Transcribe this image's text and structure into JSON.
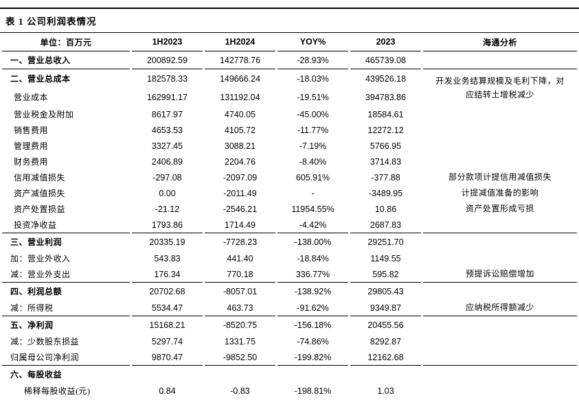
{
  "page": {
    "title": "表 1 公司利润表情况"
  },
  "table": {
    "columns": [
      "单位：百万元",
      "1H2023",
      "1H2024",
      "YOY%",
      "2023",
      "海通分析"
    ],
    "rows": [
      {
        "label": "一、营业总收入",
        "kind": "section",
        "indent": 0,
        "h1_2023": "200892.59",
        "h1_2024": "142778.76",
        "yoy": "-28.93%",
        "y2023": "465739.08",
        "analysis": "",
        "rule_below": true
      },
      {
        "label": "二、营业总成本",
        "kind": "section",
        "indent": 0,
        "h1_2023": "182578.33",
        "h1_2024": "149666.24",
        "yoy": "-18.03%",
        "y2023": "439526.18",
        "analysis": "开发业务结算规模及毛利下降，对应结转土增税减少",
        "analysis_rows": 2
      },
      {
        "label": "营业成本",
        "kind": "item",
        "indent": 1,
        "h1_2023": "162991.17",
        "h1_2024": "131192.04",
        "yoy": "-19.51%",
        "y2023": "394783.86",
        "analysis_merged": true
      },
      {
        "label": "营业税金及附加",
        "kind": "item",
        "indent": 1,
        "h1_2023": "8617.97",
        "h1_2024": "4740.05",
        "yoy": "-45.00%",
        "y2023": "18584.61",
        "analysis": ""
      },
      {
        "label": "销售费用",
        "kind": "item",
        "indent": 1,
        "h1_2023": "4653.53",
        "h1_2024": "4105.72",
        "yoy": "-11.77%",
        "y2023": "12272.12",
        "analysis": ""
      },
      {
        "label": "管理费用",
        "kind": "item",
        "indent": 1,
        "h1_2023": "3327.45",
        "h1_2024": "3088.21",
        "yoy": "-7.19%",
        "y2023": "5766.95",
        "analysis": ""
      },
      {
        "label": "财务费用",
        "kind": "item",
        "indent": 1,
        "h1_2023": "2406.89",
        "h1_2024": "2204.76",
        "yoy": "-8.40%",
        "y2023": "3714.83",
        "analysis": ""
      },
      {
        "label": "信用减值损失",
        "kind": "item",
        "indent": 1,
        "h1_2023": "-297.08",
        "h1_2024": "-2097.09",
        "yoy": "605.91%",
        "y2023": "-377.88",
        "analysis": "部分款项计提信用减值损失"
      },
      {
        "label": "资产减值损失",
        "kind": "item",
        "indent": 1,
        "h1_2023": "0.00",
        "h1_2024": "-2011.49",
        "yoy": "-",
        "y2023": "-3489.95",
        "analysis": "计提减值准备的影响"
      },
      {
        "label": "资产处置损益",
        "kind": "item",
        "indent": 1,
        "h1_2023": "-21.12",
        "h1_2024": "-2546.21",
        "yoy": "11954.55%",
        "y2023": "10.86",
        "analysis": "资产处置形成亏损"
      },
      {
        "label": "投资净收益",
        "kind": "item",
        "indent": 1,
        "h1_2023": "1793.86",
        "h1_2024": "1714.49",
        "yoy": "-4.42%",
        "y2023": "2687.83",
        "analysis": "",
        "rule_below": true
      },
      {
        "label": "三、营业利润",
        "kind": "section",
        "indent": 0,
        "h1_2023": "20335.19",
        "h1_2024": "-7728.23",
        "yoy": "-138.00%",
        "y2023": "29251.70",
        "analysis": ""
      },
      {
        "label": "加：营业外收入",
        "kind": "item",
        "indent": 0,
        "h1_2023": "543.83",
        "h1_2024": "441.40",
        "yoy": "-18.84%",
        "y2023": "1149.55",
        "analysis": ""
      },
      {
        "label": "减：营业外支出",
        "kind": "item",
        "indent": 0,
        "h1_2023": "176.34",
        "h1_2024": "770.18",
        "yoy": "336.77%",
        "y2023": "595.82",
        "analysis": "预提诉讼赔偿增加",
        "rule_below": true
      },
      {
        "label": "四、利润总额",
        "kind": "section",
        "indent": 0,
        "h1_2023": "20702.68",
        "h1_2024": "-8057.01",
        "yoy": "-138.92%",
        "y2023": "29805.43",
        "analysis": ""
      },
      {
        "label": "减：所得税",
        "kind": "item",
        "indent": 0,
        "h1_2023": "5534.47",
        "h1_2024": "463.73",
        "yoy": "-91.62%",
        "y2023": "9349.87",
        "analysis": "应纳税所得额减少",
        "rule_below": true
      },
      {
        "label": "五、净利润",
        "kind": "section",
        "indent": 0,
        "h1_2023": "15168.21",
        "h1_2024": "-8520.75",
        "yoy": "-156.18%",
        "y2023": "20455.56",
        "analysis": ""
      },
      {
        "label": "减：少数股东损益",
        "kind": "item",
        "indent": 0,
        "h1_2023": "5297.74",
        "h1_2024": "1331.75",
        "yoy": "-74.86%",
        "y2023": "8292.87",
        "analysis": ""
      },
      {
        "label": "归属母公司净利润",
        "kind": "item",
        "indent": 0,
        "h1_2023": "9870.47",
        "h1_2024": "-9852.50",
        "yoy": "-199.82%",
        "y2023": "12162.68",
        "analysis": "",
        "rule_below": true
      },
      {
        "label": "六、每股收益",
        "kind": "section",
        "indent": 0,
        "h1_2023": "",
        "h1_2024": "",
        "yoy": "",
        "y2023": "",
        "analysis": ""
      },
      {
        "label": "稀释每股收益(元)",
        "kind": "item",
        "indent": 2,
        "h1_2023": "0.84",
        "h1_2024": "-0.83",
        "yoy": "-198.81%",
        "y2023": "1.03",
        "analysis": ""
      }
    ]
  }
}
